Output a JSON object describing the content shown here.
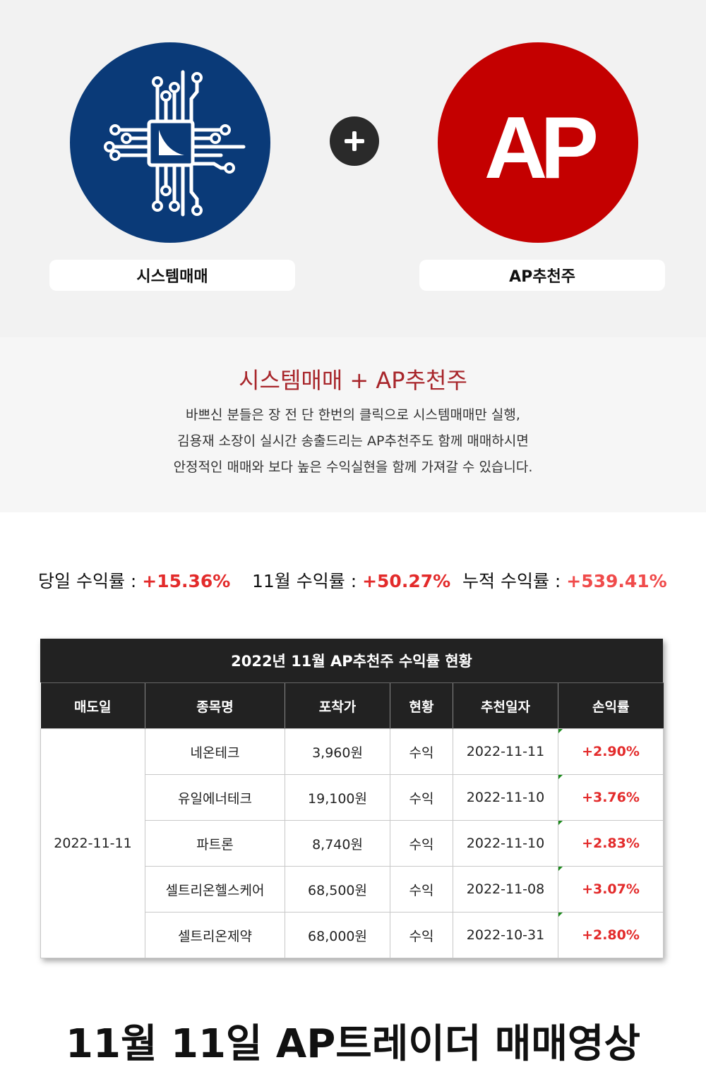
{
  "hero": {
    "left_label": "시스템매매",
    "right_label": "AP추천주",
    "ap_logo_text": "AP",
    "colors": {
      "left_circle": "#0a3a78",
      "right_circle": "#c40000",
      "plus_circle": "#2a2a2a"
    },
    "icons": {
      "left": "chip-icon",
      "middle": "plus-icon",
      "right": "ap-logo"
    }
  },
  "intro": {
    "title": "시스템매매 + AP추천주",
    "lines": [
      "바쁘신 분들은 장 전 단 한번의 클릭으로 시스템매매만 실행,",
      "김용재 소장이 실시간 송출드리는 AP추천주도 함께 매매하시면",
      "안정적인 매매와 보다 높은 수익실현을 함께 가져갈 수 있습니다."
    ]
  },
  "stats": {
    "daily": {
      "label": "당일 수익률 : ",
      "value": "+15.36%"
    },
    "monthly": {
      "label": "11월 수익률 : ",
      "value": "+50.27%"
    },
    "cumulative": {
      "label": "누적 수익률 : ",
      "value": "+539.41%"
    }
  },
  "table": {
    "title": "2022년 11월 AP추천주 수익률 현황",
    "headers": [
      "매도일",
      "종목명",
      "포착가",
      "현황",
      "추천일자",
      "손익률"
    ],
    "sell_date": "2022-11-11",
    "rows": [
      {
        "name": "네온테크",
        "price": "3,960원",
        "status": "수익",
        "rec_date": "2022-11-11",
        "pl": "+2.90%"
      },
      {
        "name": "유일에너테크",
        "price": "19,100원",
        "status": "수익",
        "rec_date": "2022-11-10",
        "pl": "+3.76%"
      },
      {
        "name": "파트론",
        "price": "8,740원",
        "status": "수익",
        "rec_date": "2022-11-10",
        "pl": "+2.83%"
      },
      {
        "name": "셀트리온헬스케어",
        "price": "68,500원",
        "status": "수익",
        "rec_date": "2022-11-08",
        "pl": "+3.07%"
      },
      {
        "name": "셀트리온제약",
        "price": "68,000원",
        "status": "수익",
        "rec_date": "2022-10-31",
        "pl": "+2.80%"
      }
    ]
  },
  "footer": {
    "title": "11월 11일 AP트레이더 매매영상"
  }
}
